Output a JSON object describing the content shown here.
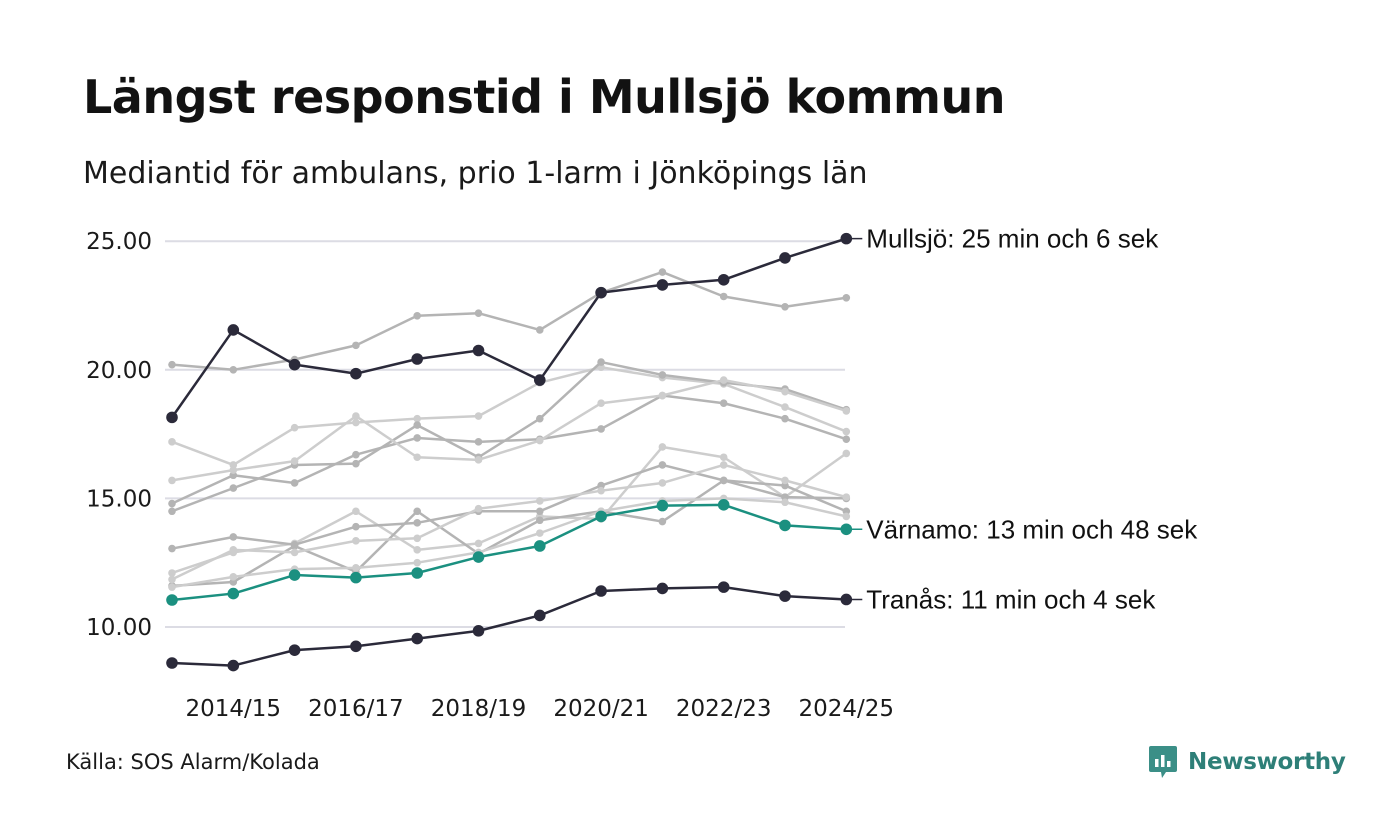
{
  "title": "Längst responstid i Mullsjö kommun",
  "subtitle": "Mediantid för ambulans, prio 1-larm i Jönköpings län",
  "source": "Källa: SOS Alarm/Kolada",
  "brand": {
    "name": "Newsworthy",
    "color": "#2e7f78"
  },
  "colors": {
    "highlight": "#2b2a3a",
    "teal": "#1b9080",
    "gray": "#b4b4b4",
    "light_gray": "#cdcdcd",
    "grid": "#dcdce4"
  },
  "chart_data": {
    "type": "line",
    "x": [
      "2013/14",
      "2014/15",
      "2015/16",
      "2016/17",
      "2017/18",
      "2018/19",
      "2019/20",
      "2020/21",
      "2021/22",
      "2022/23",
      "2023/24",
      "2024/25"
    ],
    "x_tick_labels": [
      "2014/15",
      "2016/17",
      "2018/19",
      "2020/21",
      "2022/23",
      "2024/25"
    ],
    "y_ticks": [
      "10.00",
      "15.00",
      "20.00",
      "25.00"
    ],
    "ylim": [
      8,
      26
    ],
    "highlighted_series": [
      {
        "name": "Mullsjö",
        "label": "Mullsjö: 25 min och 6 sek",
        "color": "#2b2a3a",
        "values": [
          18.15,
          21.55,
          20.2,
          19.85,
          20.42,
          20.75,
          19.6,
          23.0,
          23.3,
          23.5,
          24.35,
          25.1
        ]
      },
      {
        "name": "Värnamo",
        "label": "Värnamo: 13 min och 48 sek",
        "color": "#1b9080",
        "values": [
          11.05,
          11.3,
          12.02,
          11.92,
          12.1,
          12.72,
          13.15,
          14.3,
          14.72,
          14.75,
          13.95,
          13.8
        ]
      },
      {
        "name": "Tranås",
        "label": "Tranås: 11 min och 4 sek",
        "color": "#2b2a3a",
        "values": [
          8.6,
          8.5,
          9.1,
          9.25,
          9.55,
          9.85,
          10.45,
          11.4,
          11.5,
          11.55,
          11.2,
          11.07
        ]
      }
    ],
    "background_series": [
      {
        "color": "#b4b4b4",
        "values": [
          20.2,
          20.0,
          20.4,
          20.95,
          22.1,
          22.2,
          21.55,
          23.0,
          23.8,
          22.85,
          22.45,
          22.8
        ]
      },
      {
        "color": "#cdcdcd",
        "values": [
          17.2,
          16.3,
          17.75,
          17.95,
          18.1,
          18.2,
          19.5,
          20.1,
          19.7,
          19.45,
          18.55,
          17.6
        ]
      },
      {
        "color": "#b4b4b4",
        "values": [
          14.8,
          15.9,
          15.6,
          16.7,
          17.35,
          17.2,
          17.3,
          17.7,
          19.0,
          18.7,
          18.1,
          17.3
        ]
      },
      {
        "color": "#b4b4b4",
        "values": [
          14.5,
          15.4,
          16.3,
          16.35,
          17.85,
          16.6,
          18.1,
          20.3,
          19.8,
          19.5,
          19.25,
          18.45
        ]
      },
      {
        "color": "#cdcdcd",
        "values": [
          15.7,
          16.1,
          16.45,
          18.2,
          16.6,
          16.5,
          17.25,
          18.7,
          19.0,
          19.6,
          19.15,
          18.4
        ]
      },
      {
        "color": "#cdcdcd",
        "values": [
          12.1,
          12.9,
          13.25,
          14.5,
          13.0,
          13.25,
          14.3,
          14.2,
          17.0,
          16.6,
          15.05,
          16.75
        ]
      },
      {
        "color": "#b4b4b4",
        "values": [
          11.6,
          11.75,
          13.15,
          12.15,
          14.5,
          12.85,
          14.15,
          14.5,
          14.1,
          15.7,
          15.5,
          14.5
        ]
      },
      {
        "color": "#b4b4b4",
        "values": [
          13.05,
          13.5,
          13.2,
          13.9,
          14.05,
          14.5,
          14.5,
          15.5,
          16.3,
          15.7,
          15.05,
          15.0
        ]
      },
      {
        "color": "#cdcdcd",
        "values": [
          11.85,
          13.0,
          12.9,
          13.35,
          13.45,
          14.6,
          14.9,
          15.3,
          15.6,
          16.3,
          15.7,
          15.05
        ]
      },
      {
        "color": "#cdcdcd",
        "values": [
          11.55,
          11.95,
          12.25,
          12.3,
          12.5,
          12.9,
          13.65,
          14.5,
          14.9,
          15.0,
          14.85,
          14.3
        ]
      }
    ]
  }
}
